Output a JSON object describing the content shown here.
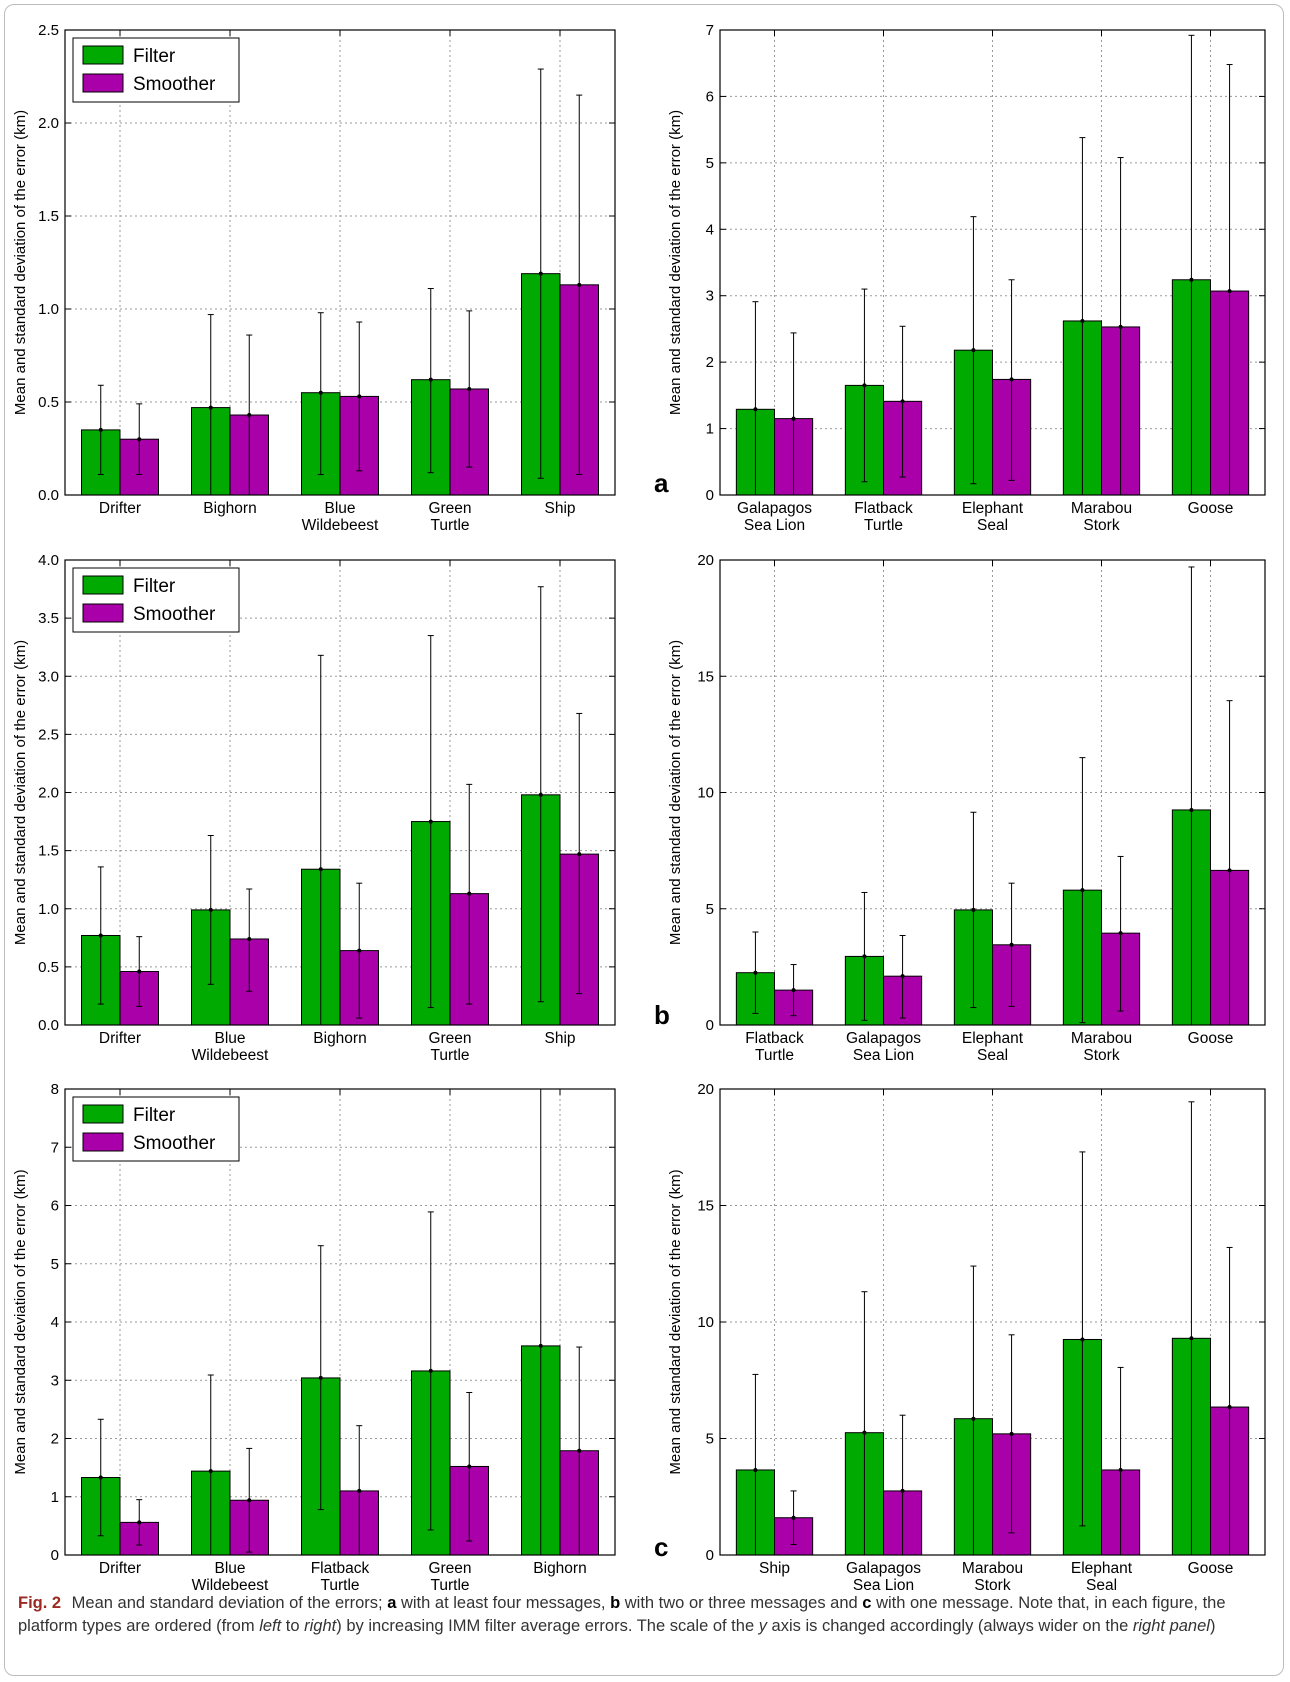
{
  "colors": {
    "filter": "#00aa00",
    "smoother": "#aa00aa",
    "grid": "#9a9a9a"
  },
  "chart_data": [
    {
      "type": "bar",
      "panel": "a-left",
      "ylabel": "Mean and standard deviation of the error (km)",
      "ylim": [
        0,
        2.5
      ],
      "yticks": [
        "0.0",
        "0.5",
        "1.0",
        "1.5",
        "2.0",
        "2.5"
      ],
      "ytick_values": [
        0,
        0.5,
        1,
        1.5,
        2,
        2.5
      ],
      "categories": [
        [
          "Drifter"
        ],
        [
          "Bighorn"
        ],
        [
          "Blue",
          "Wildebeest"
        ],
        [
          "Green",
          "Turtle"
        ],
        [
          "Ship"
        ]
      ],
      "legend": "top-left",
      "series": [
        {
          "name": "Filter",
          "values": [
            0.35,
            0.47,
            0.55,
            0.62,
            1.19
          ],
          "err_low": [
            0.11,
            0,
            0.11,
            0.12,
            0.09
          ],
          "err_high": [
            0.59,
            0.97,
            0.98,
            1.11,
            2.29
          ]
        },
        {
          "name": "Smoother",
          "values": [
            0.3,
            0.43,
            0.53,
            0.57,
            1.13
          ],
          "err_low": [
            0.11,
            0,
            0.13,
            0.15,
            0.11
          ],
          "err_high": [
            0.49,
            0.86,
            0.93,
            0.99,
            2.15
          ]
        }
      ]
    },
    {
      "type": "bar",
      "panel": "a-right",
      "ylabel": "Mean and standard deviation of the error (km)",
      "ylim": [
        0,
        7
      ],
      "yticks": [
        "0",
        "1",
        "2",
        "3",
        "4",
        "5",
        "6",
        "7"
      ],
      "ytick_values": [
        0,
        1,
        2,
        3,
        4,
        5,
        6,
        7
      ],
      "categories": [
        [
          "Galapagos",
          "Sea Lion"
        ],
        [
          "Flatback",
          "Turtle"
        ],
        [
          "Elephant",
          "Seal"
        ],
        [
          "Marabou",
          "Stork"
        ],
        [
          "Goose"
        ]
      ],
      "series": [
        {
          "name": "Filter",
          "values": [
            1.29,
            1.65,
            2.18,
            2.62,
            3.24
          ],
          "err_low": [
            0,
            0.2,
            0.17,
            0,
            0
          ],
          "err_high": [
            2.91,
            3.1,
            4.19,
            5.38,
            6.92
          ]
        },
        {
          "name": "Smoother",
          "values": [
            1.15,
            1.41,
            1.74,
            2.53,
            3.07
          ],
          "err_low": [
            0,
            0.27,
            0.22,
            0,
            0
          ],
          "err_high": [
            2.44,
            2.54,
            3.24,
            5.08,
            6.48
          ]
        }
      ]
    },
    {
      "type": "bar",
      "panel": "b-left",
      "ylabel": "Mean and standard deviation of the error (km)",
      "ylim": [
        0,
        4
      ],
      "yticks": [
        "0.0",
        "0.5",
        "1.0",
        "1.5",
        "2.0",
        "2.5",
        "3.0",
        "3.5",
        "4.0"
      ],
      "ytick_values": [
        0,
        0.5,
        1,
        1.5,
        2,
        2.5,
        3,
        3.5,
        4
      ],
      "categories": [
        [
          "Drifter"
        ],
        [
          "Blue",
          "Wildebeest"
        ],
        [
          "Bighorn"
        ],
        [
          "Green",
          "Turtle"
        ],
        [
          "Ship"
        ]
      ],
      "legend": "top-left",
      "series": [
        {
          "name": "Filter",
          "values": [
            0.77,
            0.99,
            1.34,
            1.75,
            1.98
          ],
          "err_low": [
            0.18,
            0.35,
            0,
            0.15,
            0.2
          ],
          "err_high": [
            1.36,
            1.63,
            3.18,
            3.35,
            3.77
          ]
        },
        {
          "name": "Smoother",
          "values": [
            0.46,
            0.74,
            0.64,
            1.13,
            1.47
          ],
          "err_low": [
            0.16,
            0.29,
            0.06,
            0.18,
            0.27
          ],
          "err_high": [
            0.76,
            1.17,
            1.22,
            2.07,
            2.68
          ]
        }
      ]
    },
    {
      "type": "bar",
      "panel": "b-right",
      "ylabel": "Mean and standard deviation of the error (km)",
      "ylim": [
        0,
        20
      ],
      "yticks": [
        "0",
        "5",
        "10",
        "15",
        "20"
      ],
      "ytick_values": [
        0,
        5,
        10,
        15,
        20
      ],
      "categories": [
        [
          "Flatback",
          "Turtle"
        ],
        [
          "Galapagos",
          "Sea Lion"
        ],
        [
          "Elephant",
          "Seal"
        ],
        [
          "Marabou",
          "Stork"
        ],
        [
          "Goose"
        ]
      ],
      "series": [
        {
          "name": "Filter",
          "values": [
            2.25,
            2.95,
            4.95,
            5.8,
            9.25
          ],
          "err_low": [
            0.5,
            0.2,
            0.75,
            0.1,
            0
          ],
          "err_high": [
            4.0,
            5.7,
            9.15,
            11.5,
            19.7
          ]
        },
        {
          "name": "Smoother",
          "values": [
            1.5,
            2.1,
            3.45,
            3.95,
            6.65
          ],
          "err_low": [
            0.4,
            0.3,
            0.8,
            0.6,
            0
          ],
          "err_high": [
            2.6,
            3.85,
            6.1,
            7.25,
            13.95
          ]
        }
      ]
    },
    {
      "type": "bar",
      "panel": "c-left",
      "ylabel": "Mean and standard deviation of the error (km)",
      "ylim": [
        0,
        8
      ],
      "yticks": [
        "0",
        "1",
        "2",
        "3",
        "4",
        "5",
        "6",
        "7",
        "8"
      ],
      "ytick_values": [
        0,
        1,
        2,
        3,
        4,
        5,
        6,
        7,
        8
      ],
      "categories": [
        [
          "Drifter"
        ],
        [
          "Blue",
          "Wildebeest"
        ],
        [
          "Flatback",
          "Turtle"
        ],
        [
          "Green",
          "Turtle"
        ],
        [
          "Bighorn"
        ]
      ],
      "legend": "top-left",
      "series": [
        {
          "name": "Filter",
          "values": [
            1.33,
            1.44,
            3.04,
            3.16,
            3.59
          ],
          "err_low": [
            0.33,
            0,
            0.78,
            0.43,
            0
          ],
          "err_high": [
            2.33,
            3.09,
            5.31,
            5.89,
            8.0
          ]
        },
        {
          "name": "Smoother",
          "values": [
            0.56,
            0.94,
            1.1,
            1.52,
            1.79
          ],
          "err_low": [
            0.17,
            0.05,
            0,
            0.24,
            0
          ],
          "err_high": [
            0.95,
            1.83,
            2.22,
            2.79,
            3.57
          ]
        }
      ]
    },
    {
      "type": "bar",
      "panel": "c-right",
      "ylabel": "Mean and standard deviation of the error (km)",
      "ylim": [
        0,
        20
      ],
      "yticks": [
        "0",
        "5",
        "10",
        "15",
        "20"
      ],
      "ytick_values": [
        0,
        5,
        10,
        15,
        20
      ],
      "categories": [
        [
          "Ship"
        ],
        [
          "Galapagos",
          "Sea Lion"
        ],
        [
          "Marabou",
          "Stork"
        ],
        [
          "Elephant",
          "Seal"
        ],
        [
          "Goose"
        ]
      ],
      "series": [
        {
          "name": "Filter",
          "values": [
            3.65,
            5.25,
            5.85,
            9.25,
            9.3
          ],
          "err_low": [
            0,
            0,
            0,
            1.25,
            0
          ],
          "err_high": [
            7.75,
            11.3,
            12.4,
            17.3,
            19.45
          ]
        },
        {
          "name": "Smoother",
          "values": [
            1.6,
            2.75,
            5.2,
            3.65,
            6.35
          ],
          "err_low": [
            0.45,
            0,
            0.95,
            0,
            0
          ],
          "err_high": [
            2.75,
            6.0,
            9.45,
            8.05,
            13.2
          ]
        }
      ]
    }
  ],
  "panel_letters": {
    "a": "a",
    "b": "b",
    "c": "c"
  },
  "caption": {
    "fig_label": "Fig. 2",
    "p1": " Mean and standard deviation of the errors; ",
    "a": "a",
    "p2": " with at least four messages, ",
    "b": "b",
    "p3": " with two or three messages and ",
    "c": "c",
    "p4": " with one message. Note that, in each figure, the platform types are ordered (from ",
    "left": "left",
    "p5": " to ",
    "right": "right",
    "p6": ") by increasing IMM filter average errors. The scale of the ",
    "y": "y",
    "p7": " axis is changed accordingly (always wider on the ",
    "right_panel": "right panel",
    "p8": ")"
  }
}
